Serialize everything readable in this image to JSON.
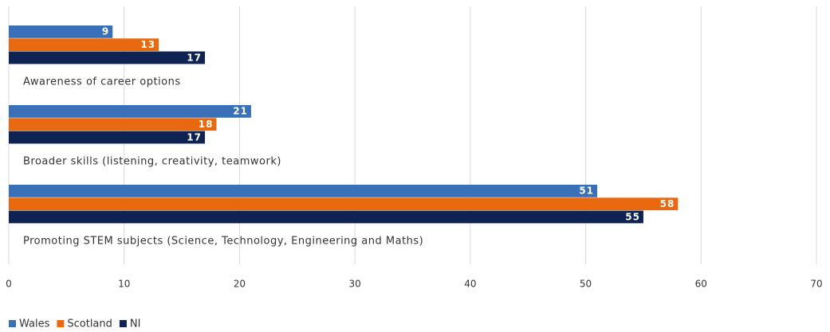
{
  "chart_data": {
    "type": "bar",
    "orientation": "horizontal",
    "categories": [
      "Awareness of career options",
      "Broader skills (listening, creativity, teamwork)",
      "Promoting STEM subjects (Science, Technology, Engineering and Maths)"
    ],
    "series": [
      {
        "name": "Wales",
        "color": "#3a70b8",
        "values": [
          9,
          21,
          51
        ]
      },
      {
        "name": "Scotland",
        "color": "#e8690f",
        "values": [
          13,
          18,
          58
        ]
      },
      {
        "name": "NI",
        "color": "#0f2352",
        "values": [
          17,
          17,
          55
        ]
      }
    ],
    "xlim": [
      0,
      70
    ],
    "xticks": [
      0,
      10,
      20,
      30,
      40,
      50,
      60,
      70
    ],
    "grid": true,
    "legend": "bottom-left"
  }
}
